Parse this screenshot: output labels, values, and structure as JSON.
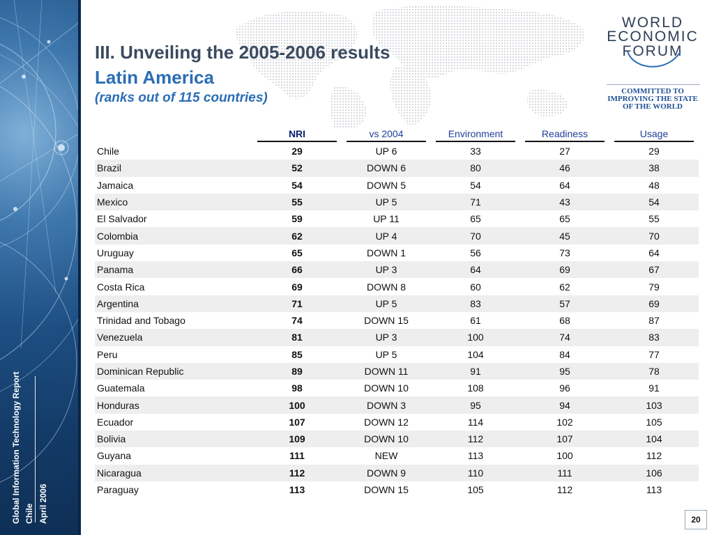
{
  "titles": {
    "line1": "III. Unveiling the 2005-2006 results",
    "line2": "Latin America",
    "line3": "(ranks out of 115 countries)"
  },
  "logo": {
    "line1": "WORLD",
    "line2": "ECONOMIC",
    "line3": "FORUM",
    "tagline1": "COMMITTED TO",
    "tagline2": "IMPROVING THE STATE",
    "tagline3": "OF THE WORLD"
  },
  "sidebar": {
    "report": "Global Information Technology Report",
    "country": "Chile",
    "date": "April 2006"
  },
  "table": {
    "headers": [
      "NRI",
      "vs 2004",
      "Environment",
      "Readiness",
      "Usage"
    ],
    "rows": [
      {
        "country": "Chile",
        "nri": "29",
        "vs2004": "UP 6",
        "environment": "33",
        "readiness": "27",
        "usage": "29"
      },
      {
        "country": "Brazil",
        "nri": "52",
        "vs2004": "DOWN 6",
        "environment": "80",
        "readiness": "46",
        "usage": "38"
      },
      {
        "country": "Jamaica",
        "nri": "54",
        "vs2004": "DOWN 5",
        "environment": "54",
        "readiness": "64",
        "usage": "48"
      },
      {
        "country": "Mexico",
        "nri": "55",
        "vs2004": "UP 5",
        "environment": "71",
        "readiness": "43",
        "usage": "54"
      },
      {
        "country": "El Salvador",
        "nri": "59",
        "vs2004": "UP 11",
        "environment": "65",
        "readiness": "65",
        "usage": "55"
      },
      {
        "country": "Colombia",
        "nri": "62",
        "vs2004": "UP 4",
        "environment": "70",
        "readiness": "45",
        "usage": "70"
      },
      {
        "country": "Uruguay",
        "nri": "65",
        "vs2004": "DOWN 1",
        "environment": "56",
        "readiness": "73",
        "usage": "64"
      },
      {
        "country": "Panama",
        "nri": "66",
        "vs2004": "UP 3",
        "environment": "64",
        "readiness": "69",
        "usage": "67"
      },
      {
        "country": "Costa Rica",
        "nri": "69",
        "vs2004": "DOWN 8",
        "environment": "60",
        "readiness": "62",
        "usage": "79"
      },
      {
        "country": "Argentina",
        "nri": "71",
        "vs2004": "UP 5",
        "environment": "83",
        "readiness": "57",
        "usage": "69"
      },
      {
        "country": "Trinidad and Tobago",
        "nri": "74",
        "vs2004": "DOWN 15",
        "environment": "61",
        "readiness": "68",
        "usage": "87"
      },
      {
        "country": "Venezuela",
        "nri": "81",
        "vs2004": "UP 3",
        "environment": "100",
        "readiness": "74",
        "usage": "83"
      },
      {
        "country": "Peru",
        "nri": "85",
        "vs2004": "UP 5",
        "environment": "104",
        "readiness": "84",
        "usage": "77"
      },
      {
        "country": "Dominican Republic",
        "nri": "89",
        "vs2004": "DOWN 11",
        "environment": "91",
        "readiness": "95",
        "usage": "78"
      },
      {
        "country": "Guatemala",
        "nri": "98",
        "vs2004": "DOWN 10",
        "environment": "108",
        "readiness": "96",
        "usage": "91"
      },
      {
        "country": "Honduras",
        "nri": "100",
        "vs2004": "DOWN 3",
        "environment": "95",
        "readiness": "94",
        "usage": "103"
      },
      {
        "country": "Ecuador",
        "nri": "107",
        "vs2004": "DOWN 12",
        "environment": "114",
        "readiness": "102",
        "usage": "105"
      },
      {
        "country": "Bolivia",
        "nri": "109",
        "vs2004": "DOWN 10",
        "environment": "112",
        "readiness": "107",
        "usage": "104"
      },
      {
        "country": "Guyana",
        "nri": "111",
        "vs2004": "NEW",
        "environment": "113",
        "readiness": "100",
        "usage": "112"
      },
      {
        "country": "Nicaragua",
        "nri": "112",
        "vs2004": "DOWN 9",
        "environment": "110",
        "readiness": "111",
        "usage": "106"
      },
      {
        "country": "Paraguay",
        "nri": "113",
        "vs2004": "DOWN 15",
        "environment": "105",
        "readiness": "112",
        "usage": "113"
      }
    ]
  },
  "page_number": "20",
  "colors": {
    "title_dark": "#3a4a5e",
    "title_blue": "#2a6db5",
    "header_blue": "#1f3f99",
    "row_alt": "#eeeeef",
    "sidebar_blue": "#1d4f83"
  }
}
